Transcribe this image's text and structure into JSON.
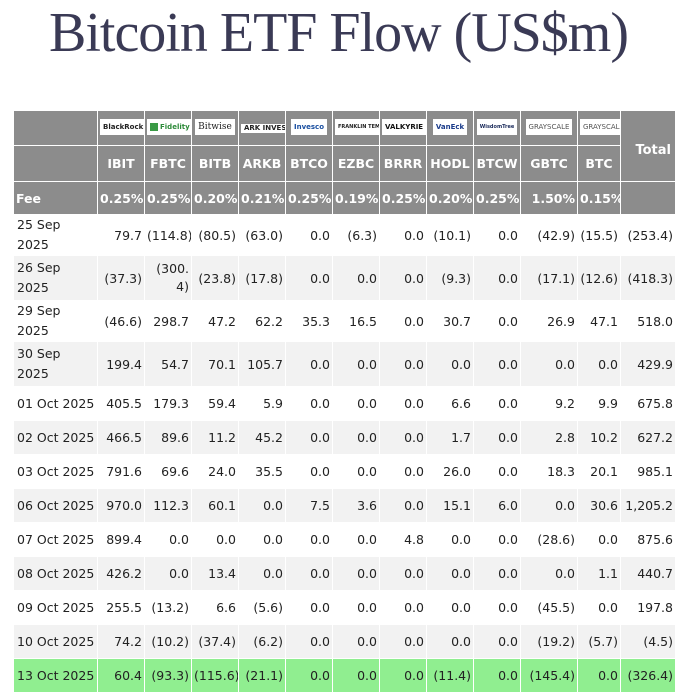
{
  "title": "Bitcoin ETF Flow (US$m)",
  "header": {
    "logos": [
      "BlackRock",
      "Fidelity",
      "Bitwise",
      "ARK INVEST",
      "Invesco",
      "FRANKLIN TEMPLETON",
      "VALKYRIE",
      "VanEck",
      "WisdomTree",
      "GRAYSCALE",
      "GRAYSCALE"
    ],
    "total_label": "Total",
    "tickers": [
      "IBIT",
      "FBTC",
      "BITB",
      "ARKB",
      "BTCO",
      "EZBC",
      "BRRR",
      "HODL",
      "BTCW",
      "GBTC",
      "BTC"
    ],
    "fee_label": "Fee",
    "fees": [
      "0.25%",
      "0.25%",
      "0.20%",
      "0.21%",
      "0.25%",
      "0.19%",
      "0.25%",
      "0.20%",
      "0.25%",
      "1.50%",
      "0.15%"
    ]
  },
  "rows": [
    {
      "date": "25 Sep 2025",
      "values": [
        "79.7",
        "(114.8)",
        "(80.5)",
        "(63.0)",
        "0.0",
        "(6.3)",
        "0.0",
        "(10.1)",
        "0.0",
        "(42.9)",
        "(15.5)",
        "(253.4)"
      ]
    },
    {
      "date": "26 Sep 2025",
      "values": [
        "(37.3)",
        "(300.4)",
        "(23.8)",
        "(17.8)",
        "0.0",
        "0.0",
        "0.0",
        "(9.3)",
        "0.0",
        "(17.1)",
        "(12.6)",
        "(418.3)"
      ]
    },
    {
      "date": "29 Sep 2025",
      "values": [
        "(46.6)",
        "298.7",
        "47.2",
        "62.2",
        "35.3",
        "16.5",
        "0.0",
        "30.7",
        "0.0",
        "26.9",
        "47.1",
        "518.0"
      ]
    },
    {
      "date": "30 Sep 2025",
      "values": [
        "199.4",
        "54.7",
        "70.1",
        "105.7",
        "0.0",
        "0.0",
        "0.0",
        "0.0",
        "0.0",
        "0.0",
        "0.0",
        "429.9"
      ]
    },
    {
      "date": "01 Oct 2025",
      "values": [
        "405.5",
        "179.3",
        "59.4",
        "5.9",
        "0.0",
        "0.0",
        "0.0",
        "6.6",
        "0.0",
        "9.2",
        "9.9",
        "675.8"
      ]
    },
    {
      "date": "02 Oct 2025",
      "values": [
        "466.5",
        "89.6",
        "11.2",
        "45.2",
        "0.0",
        "0.0",
        "0.0",
        "1.7",
        "0.0",
        "2.8",
        "10.2",
        "627.2"
      ]
    },
    {
      "date": "03 Oct 2025",
      "values": [
        "791.6",
        "69.6",
        "24.0",
        "35.5",
        "0.0",
        "0.0",
        "0.0",
        "26.0",
        "0.0",
        "18.3",
        "20.1",
        "985.1"
      ]
    },
    {
      "date": "06 Oct 2025",
      "values": [
        "970.0",
        "112.3",
        "60.1",
        "0.0",
        "7.5",
        "3.6",
        "0.0",
        "15.1",
        "6.0",
        "0.0",
        "30.6",
        "1,205.2"
      ]
    },
    {
      "date": "07 Oct 2025",
      "values": [
        "899.4",
        "0.0",
        "0.0",
        "0.0",
        "0.0",
        "0.0",
        "4.8",
        "0.0",
        "0.0",
        "(28.6)",
        "0.0",
        "875.6"
      ]
    },
    {
      "date": "08 Oct 2025",
      "values": [
        "426.2",
        "0.0",
        "13.4",
        "0.0",
        "0.0",
        "0.0",
        "0.0",
        "0.0",
        "0.0",
        "0.0",
        "1.1",
        "440.7"
      ]
    },
    {
      "date": "09 Oct 2025",
      "values": [
        "255.5",
        "(13.2)",
        "6.6",
        "(5.6)",
        "0.0",
        "0.0",
        "0.0",
        "0.0",
        "0.0",
        "(45.5)",
        "0.0",
        "197.8"
      ]
    },
    {
      "date": "10 Oct 2025",
      "values": [
        "74.2",
        "(10.2)",
        "(37.4)",
        "(6.2)",
        "0.0",
        "0.0",
        "0.0",
        "0.0",
        "0.0",
        "(19.2)",
        "(5.7)",
        "(4.5)"
      ]
    },
    {
      "date": "13 Oct 2025",
      "values": [
        "60.4",
        "(93.3)",
        "(115.6)",
        "(21.1)",
        "0.0",
        "0.0",
        "0.0",
        "(11.4)",
        "0.0",
        "(145.4)",
        "0.0",
        "(326.4)"
      ]
    }
  ],
  "colors": {
    "header_bg": "#8c8c8c",
    "negative": "#e0302f",
    "highlight_row": "#90ee90",
    "stripe": "#f2f2f2",
    "title": "#3a3a55"
  }
}
